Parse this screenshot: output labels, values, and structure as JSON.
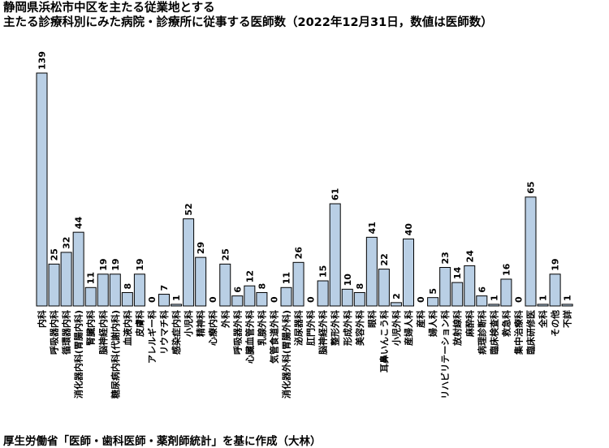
{
  "title_line1": "静岡県浜松市中区を主たる従業地とする",
  "title_line2": "主たる診療科別にみた病院・診療所に従事する医師数（2022年12月31日，数値は医師数）",
  "source": "厚生労働省「医師・歯科医師・薬剤師統計」を基に作成（大林）",
  "colors": {
    "bar_fill": "#b9cfe5",
    "bar_stroke": "#000000"
  },
  "chart_data": {
    "type": "bar",
    "title": "主たる診療科別にみた病院・診療所に従事する医師数（2022年12月31日，数値は医師数）",
    "xlabel": "",
    "ylabel": "",
    "ylim": [
      0,
      139
    ],
    "grid": false,
    "legend": "none",
    "categories": [
      "内科",
      "呼吸器内科",
      "循環器内科",
      "消化器内科(胃腸内科)",
      "腎臓内科",
      "脳神経内科",
      "糖尿病内科(代謝内科)",
      "血液内科",
      "皮膚科",
      "アレルギー科",
      "リウマチ科",
      "感染症内科",
      "小児科",
      "精神科",
      "心療内科",
      "外科",
      "呼吸器外科",
      "心臓血管外科",
      "乳腺外科",
      "気管食道外科",
      "消化器外科(胃腸外科)",
      "泌尿器科",
      "肛門外科",
      "脳神経外科",
      "整形外科",
      "形成外科",
      "美容外科",
      "眼科",
      "耳鼻いんこう科",
      "小児外科",
      "産婦人科",
      "産科",
      "婦人科",
      "リハビリテーション科",
      "放射線科",
      "麻酔科",
      "病理診断科",
      "臨床検査科",
      "救急科",
      "集中治療科",
      "臨床研修医",
      "全科",
      "その他",
      "不詳"
    ],
    "values": [
      139,
      25,
      32,
      44,
      11,
      19,
      19,
      8,
      19,
      0,
      7,
      1,
      52,
      29,
      0,
      25,
      6,
      12,
      8,
      0,
      11,
      26,
      0,
      15,
      61,
      10,
      8,
      41,
      22,
      2,
      40,
      0,
      5,
      23,
      14,
      24,
      6,
      1,
      16,
      0,
      65,
      1,
      19,
      1
    ]
  }
}
